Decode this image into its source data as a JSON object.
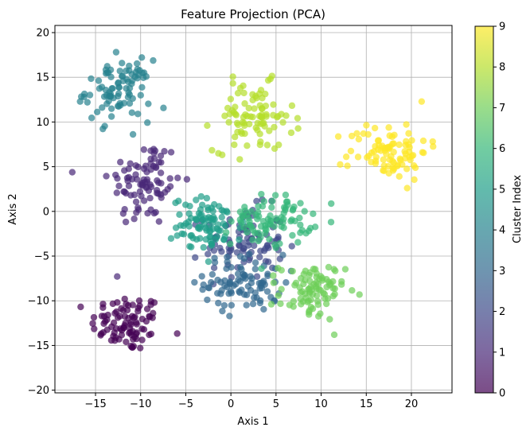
{
  "chart_data": {
    "type": "scatter",
    "title": "Feature Projection (PCA)",
    "xlabel": "Axis 1",
    "ylabel": "Axis 2",
    "xlim": [
      -19.5,
      24.5
    ],
    "ylim": [
      -20.3,
      20.8
    ],
    "xticks": [
      -15,
      -10,
      -5,
      0,
      5,
      10,
      15,
      20
    ],
    "yticks": [
      -20,
      -15,
      -10,
      -5,
      0,
      5,
      10,
      15,
      20
    ],
    "grid": true,
    "marker_alpha": 0.7,
    "colorbar": {
      "label": "Cluster Index",
      "min": 0,
      "max": 9,
      "ticks": [
        0,
        1,
        2,
        3,
        4,
        5,
        6,
        7,
        8,
        9
      ],
      "colormap": "viridis",
      "stops": [
        "#440154",
        "#482878",
        "#3e4989",
        "#31688e",
        "#26828e",
        "#1f9e89",
        "#35b779",
        "#6ece58",
        "#b5de2b",
        "#fde725"
      ]
    },
    "clusters": [
      {
        "index": 0,
        "color": "#440154",
        "center": [
          -11.5,
          -12.5
        ],
        "spread": [
          2.0,
          1.6
        ],
        "n": 90
      },
      {
        "index": 1,
        "color": "#482878",
        "center": [
          -9.5,
          3.2
        ],
        "spread": [
          2.0,
          2.5
        ],
        "n": 90
      },
      {
        "index": 2,
        "color": "#3e4989",
        "center": [
          1.5,
          -3.5
        ],
        "spread": [
          2.2,
          2.0
        ],
        "n": 90
      },
      {
        "index": 3,
        "color": "#31688e",
        "center": [
          1.5,
          -8.0
        ],
        "spread": [
          2.2,
          1.6
        ],
        "n": 90
      },
      {
        "index": 4,
        "color": "#26828e",
        "center": [
          -12.5,
          13.5
        ],
        "spread": [
          1.8,
          1.7
        ],
        "n": 90
      },
      {
        "index": 5,
        "color": "#1f9e89",
        "center": [
          -2.5,
          -1.5
        ],
        "spread": [
          2.0,
          1.5
        ],
        "n": 90
      },
      {
        "index": 6,
        "color": "#35b779",
        "center": [
          4.5,
          -1.0
        ],
        "spread": [
          2.2,
          1.4
        ],
        "n": 90
      },
      {
        "index": 7,
        "color": "#6ece58",
        "center": [
          9.0,
          -9.0
        ],
        "spread": [
          1.8,
          1.6
        ],
        "n": 90
      },
      {
        "index": 8,
        "color": "#b5de2b",
        "center": [
          2.5,
          10.5
        ],
        "spread": [
          2.2,
          1.9
        ],
        "n": 90
      },
      {
        "index": 9,
        "color": "#fde725",
        "center": [
          17.5,
          6.8
        ],
        "spread": [
          2.2,
          1.6
        ],
        "n": 90
      }
    ]
  }
}
